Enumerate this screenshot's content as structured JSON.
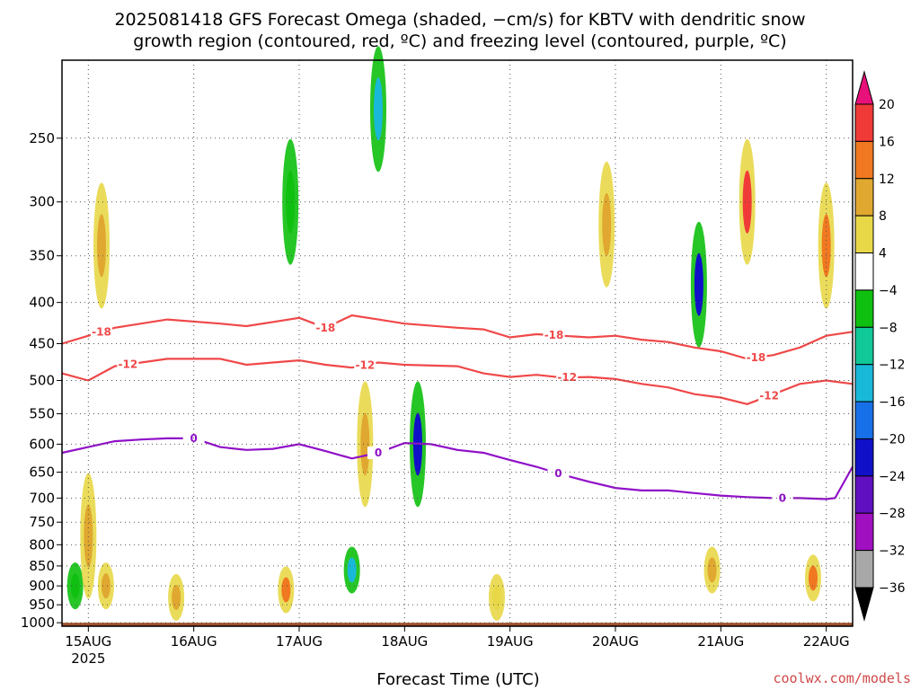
{
  "title_line1": "2025081418 GFS Forecast Omega (shaded, −cm/s) for KBTV with dendritic snow",
  "title_line2": "growth region (contoured, red, ºC) and freezing level (contoured, purple, ºC)",
  "credit": "coolwx.com/models",
  "colors": {
    "dgz": "#f04848",
    "freezing": "#9010c8",
    "ground": "#a0522d",
    "grid": "#555555"
  },
  "chart_data": {
    "type": "heatmap",
    "xlabel": "Forecast Time (UTC)",
    "ylabel": "",
    "x_ticks": [
      {
        "label": "15AUG",
        "sub": "2025",
        "t": 0
      },
      {
        "label": "16AUG",
        "sub": "",
        "t": 24
      },
      {
        "label": "17AUG",
        "sub": "",
        "t": 48
      },
      {
        "label": "18AUG",
        "sub": "",
        "t": 72
      },
      {
        "label": "19AUG",
        "sub": "",
        "t": 96
      },
      {
        "label": "20AUG",
        "sub": "",
        "t": 120
      },
      {
        "label": "21AUG",
        "sub": "",
        "t": 144
      },
      {
        "label": "22AUG",
        "sub": "",
        "t": 168
      }
    ],
    "xlim_hours": [
      -6,
      174
    ],
    "y_ticks": [
      250,
      300,
      350,
      400,
      450,
      500,
      550,
      600,
      650,
      700,
      750,
      800,
      850,
      900,
      950,
      1000
    ],
    "ylim_hpa": [
      200,
      1010
    ],
    "y_scale": "log",
    "grid": true,
    "colorbar": {
      "labels": [
        "20",
        "16",
        "12",
        "8",
        "4",
        "−4",
        "−8",
        "−12",
        "−16",
        "−20",
        "−24",
        "−28",
        "−32",
        "−36"
      ],
      "colors": [
        "#e8107a",
        "#f03a38",
        "#f07820",
        "#e0a830",
        "#e8d848",
        "#ffffff",
        "#10c010",
        "#10c898",
        "#18b8d8",
        "#1870e8",
        "#1010c8",
        "#6010c0",
        "#a010c0",
        "#a8a8a8",
        "#000000"
      ]
    },
    "series": [
      {
        "name": "-18",
        "color": "#f04848",
        "labels": [
          {
            "text": "-18",
            "t": 3
          },
          {
            "text": "-18",
            "t": 54
          },
          {
            "text": "-18",
            "t": 106
          },
          {
            "text": "-18",
            "t": 152
          }
        ],
        "points": [
          [
            -6,
            450
          ],
          [
            0,
            440
          ],
          [
            6,
            430
          ],
          [
            18,
            420
          ],
          [
            30,
            425
          ],
          [
            36,
            428
          ],
          [
            42,
            423
          ],
          [
            48,
            418
          ],
          [
            54,
            430
          ],
          [
            60,
            415
          ],
          [
            66,
            420
          ],
          [
            72,
            425
          ],
          [
            84,
            430
          ],
          [
            90,
            432
          ],
          [
            96,
            442
          ],
          [
            102,
            438
          ],
          [
            108,
            440
          ],
          [
            114,
            442
          ],
          [
            120,
            440
          ],
          [
            126,
            445
          ],
          [
            132,
            448
          ],
          [
            138,
            455
          ],
          [
            144,
            460
          ],
          [
            150,
            470
          ],
          [
            156,
            465
          ],
          [
            162,
            455
          ],
          [
            168,
            440
          ],
          [
            174,
            435
          ]
        ]
      },
      {
        "name": "-12",
        "color": "#f04848",
        "labels": [
          {
            "text": "-12",
            "t": 9
          },
          {
            "text": "-12",
            "t": 63
          },
          {
            "text": "-12",
            "t": 109
          },
          {
            "text": "-12",
            "t": 155
          }
        ],
        "points": [
          [
            -6,
            490
          ],
          [
            0,
            500
          ],
          [
            6,
            480
          ],
          [
            12,
            475
          ],
          [
            18,
            470
          ],
          [
            30,
            470
          ],
          [
            36,
            478
          ],
          [
            42,
            475
          ],
          [
            48,
            472
          ],
          [
            54,
            478
          ],
          [
            60,
            482
          ],
          [
            66,
            475
          ],
          [
            72,
            478
          ],
          [
            84,
            480
          ],
          [
            90,
            490
          ],
          [
            96,
            495
          ],
          [
            102,
            492
          ],
          [
            108,
            496
          ],
          [
            114,
            495
          ],
          [
            120,
            498
          ],
          [
            126,
            505
          ],
          [
            132,
            510
          ],
          [
            138,
            520
          ],
          [
            144,
            525
          ],
          [
            150,
            535
          ],
          [
            156,
            520
          ],
          [
            162,
            505
          ],
          [
            168,
            500
          ],
          [
            174,
            505
          ]
        ]
      },
      {
        "name": "0",
        "color": "#9010c8",
        "labels": [
          {
            "text": "0",
            "t": 24
          },
          {
            "text": "0",
            "t": 66
          },
          {
            "text": "0",
            "t": 107
          },
          {
            "text": "0",
            "t": 158
          }
        ],
        "points": [
          [
            -6,
            615
          ],
          [
            0,
            605
          ],
          [
            6,
            595
          ],
          [
            12,
            592
          ],
          [
            18,
            590
          ],
          [
            24,
            590
          ],
          [
            30,
            605
          ],
          [
            36,
            610
          ],
          [
            42,
            608
          ],
          [
            48,
            600
          ],
          [
            54,
            612
          ],
          [
            60,
            625
          ],
          [
            66,
            615
          ],
          [
            72,
            598
          ],
          [
            78,
            600
          ],
          [
            84,
            610
          ],
          [
            90,
            615
          ],
          [
            96,
            628
          ],
          [
            102,
            640
          ],
          [
            108,
            655
          ],
          [
            114,
            668
          ],
          [
            120,
            680
          ],
          [
            126,
            685
          ],
          [
            132,
            685
          ],
          [
            138,
            690
          ],
          [
            144,
            695
          ],
          [
            150,
            698
          ],
          [
            156,
            700
          ],
          [
            162,
            700
          ],
          [
            168,
            702
          ],
          [
            170,
            700
          ],
          [
            174,
            640
          ]
        ]
      }
    ],
    "omega_cells": [
      {
        "t": -3,
        "p": 900,
        "value": -4
      },
      {
        "t": 0,
        "p": 780,
        "value": 8
      },
      {
        "t": 3,
        "p": 340,
        "value": 8
      },
      {
        "t": 4,
        "p": 900,
        "value": 8
      },
      {
        "t": 20,
        "p": 930,
        "value": 8
      },
      {
        "t": 45,
        "p": 910,
        "value": 12
      },
      {
        "t": 46,
        "p": 300,
        "value": -4
      },
      {
        "t": 60,
        "p": 860,
        "value": -12
      },
      {
        "t": 63,
        "p": 600,
        "value": 8
      },
      {
        "t": 66,
        "p": 230,
        "value": -12
      },
      {
        "t": 75,
        "p": 600,
        "value": -20
      },
      {
        "t": 93,
        "p": 930,
        "value": 4
      },
      {
        "t": 118,
        "p": 320,
        "value": 8
      },
      {
        "t": 139,
        "p": 380,
        "value": -20
      },
      {
        "t": 142,
        "p": 860,
        "value": 8
      },
      {
        "t": 150,
        "p": 300,
        "value": 16
      },
      {
        "t": 165,
        "p": 880,
        "value": 12
      },
      {
        "t": 168,
        "p": 340,
        "value": 12
      }
    ]
  }
}
